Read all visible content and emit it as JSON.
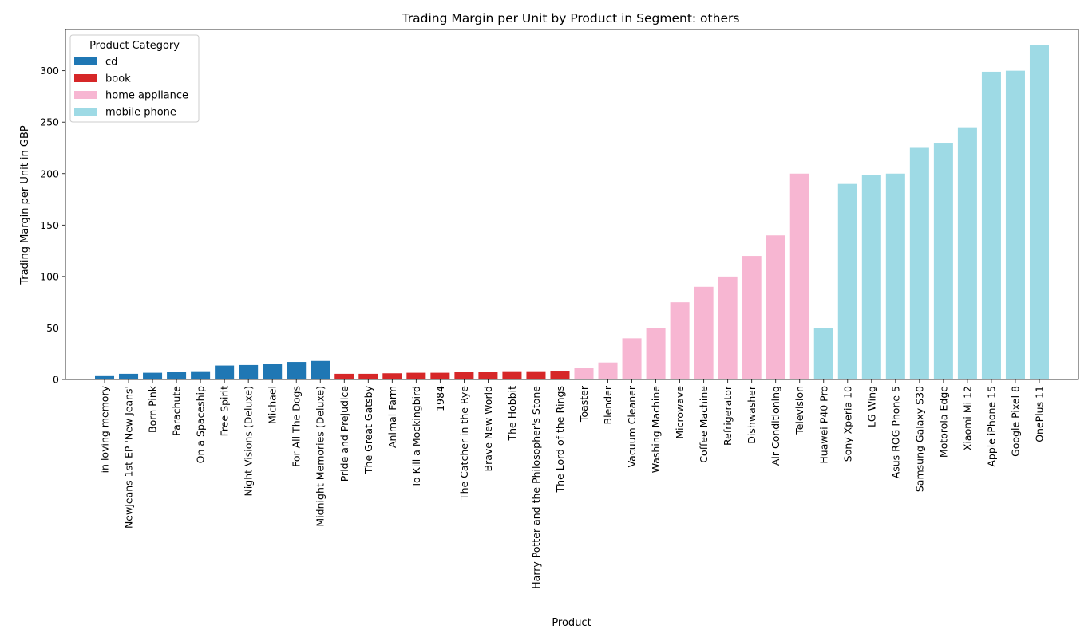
{
  "chart_data": {
    "type": "bar",
    "title": "Trading Margin per Unit by Product in Segment: others",
    "xlabel": "Product",
    "ylabel": "Trading Margin per Unit in GBP",
    "ylim": [
      0,
      340
    ],
    "yticks": [
      0,
      50,
      100,
      150,
      200,
      250,
      300
    ],
    "grid": false,
    "legend": {
      "title": "Product Category",
      "placement": "upper-left",
      "entries": [
        {
          "label": "cd",
          "color": "#1f77b4"
        },
        {
          "label": "book",
          "color": "#d62728"
        },
        {
          "label": "home appliance",
          "color": "#f7b6d2"
        },
        {
          "label": "mobile phone",
          "color": "#9edae5"
        }
      ]
    },
    "categories": [
      "in loving memory",
      "NewJeans 1st EP 'New Jeans'",
      "Born Pink",
      "Parachute",
      "On a Spaceship",
      "Free Spirit",
      "Night Visions (Deluxe)",
      "Michael",
      "For All The Dogs",
      "Midnight Memories (Deluxe)",
      "Pride and Prejudice",
      "The Great Gatsby",
      "Animal Farm",
      "To Kill a Mockingbird",
      "1984",
      "The Catcher in the Rye",
      "Brave New World",
      "The Hobbit",
      "Harry Potter and the Philosopher's Stone",
      "The Lord of the Rings",
      "Toaster",
      "Blender",
      "Vacuum Cleaner",
      "Washing Machine",
      "Microwave",
      "Coffee Machine",
      "Refrigerator",
      "Dishwasher",
      "Air Conditioning",
      "Television",
      "Huawei P40 Pro",
      "Sony Xperia 10",
      "LG Wing",
      "Asus ROG Phone 5",
      "Samsung Galaxy S30",
      "Motorola Edge",
      "Xiaomi Mi 12",
      "Apple iPhone 15",
      "Google Pixel 8",
      "OnePlus 11"
    ],
    "values": [
      4,
      5.5,
      6.5,
      7,
      8,
      13.5,
      14,
      15,
      17,
      18,
      5.5,
      5.5,
      6,
      6.5,
      6.5,
      7,
      7,
      8,
      8,
      8.5,
      11,
      16.5,
      40,
      50,
      75,
      90,
      100,
      120,
      140,
      200,
      50,
      190,
      199,
      200,
      225,
      230,
      245,
      299,
      300,
      325
    ],
    "category_group": [
      "cd",
      "cd",
      "cd",
      "cd",
      "cd",
      "cd",
      "cd",
      "cd",
      "cd",
      "cd",
      "book",
      "book",
      "book",
      "book",
      "book",
      "book",
      "book",
      "book",
      "book",
      "book",
      "home appliance",
      "home appliance",
      "home appliance",
      "home appliance",
      "home appliance",
      "home appliance",
      "home appliance",
      "home appliance",
      "home appliance",
      "home appliance",
      "mobile phone",
      "mobile phone",
      "mobile phone",
      "mobile phone",
      "mobile phone",
      "mobile phone",
      "mobile phone",
      "mobile phone",
      "mobile phone",
      "mobile phone"
    ]
  }
}
